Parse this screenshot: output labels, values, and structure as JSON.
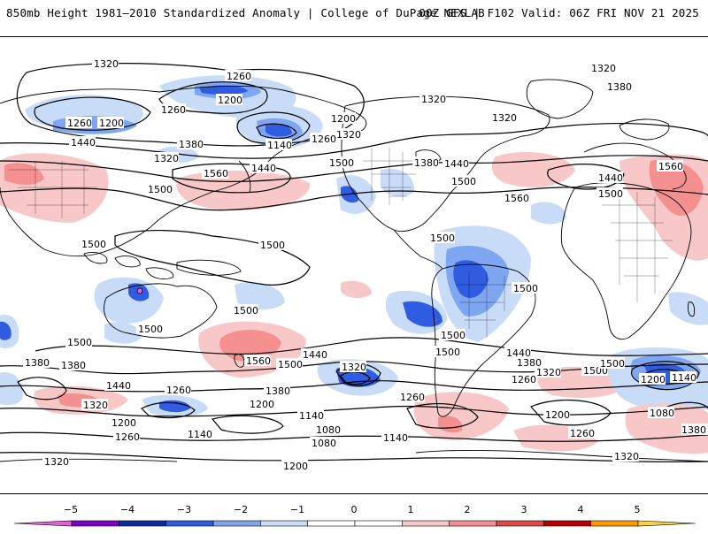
{
  "header": {
    "title_left": "850mb Height 1981–2010 Standardized Anomaly | College of DuPage NEXLAB",
    "title_right": "00Z GFS | F102 Valid: 06Z FRI NOV 21 2025"
  },
  "contour_labels": {
    "l1": "1320",
    "l2": "1260",
    "l3": "1200",
    "l4": "1260",
    "l5": "1200",
    "l6": "1260",
    "l7": "1140",
    "l8": "1200",
    "l9": "1320",
    "l10": "1260",
    "l11": "1320",
    "l12": "1380",
    "l13": "1320",
    "l14": "1320",
    "l15": "1440",
    "l16": "1320",
    "l17": "1380",
    "l18": "1440",
    "l19": "1500",
    "l20": "1560",
    "l21": "1500",
    "l22": "1380",
    "l23": "1440",
    "l24": "1500",
    "l25": "1560",
    "l26": "1440",
    "l27": "1500",
    "l28": "1560",
    "l29": "1500",
    "l30": "1500",
    "l31": "1500",
    "l32": "1500",
    "l33": "1500",
    "l34": "1500",
    "l35": "1500",
    "l36": "1500",
    "l37": "1500",
    "l38": "1500",
    "l39": "1380",
    "l40": "1440",
    "l41": "1320",
    "l42": "1260",
    "l43": "1200",
    "l44": "1260",
    "l45": "1140",
    "l46": "1200",
    "l47": "1560",
    "l48": "1500",
    "l49": "1440",
    "l50": "1320",
    "l51": "1380",
    "l52": "1260",
    "l53": "1140",
    "l54": "1080",
    "l55": "1080",
    "l56": "1140",
    "l57": "1200",
    "l58": "1440",
    "l59": "1380",
    "l60": "1320",
    "l61": "1260",
    "l62": "1200",
    "l63": "1500",
    "l64": "1200",
    "l65": "1140",
    "l66": "1080",
    "l67": "1260",
    "l68": "1380",
    "l69": "1320",
    "l70": "1380",
    "l71": "1320"
  },
  "colorbar": {
    "ticks": [
      "−5",
      "−4",
      "−3",
      "−2",
      "−1",
      "0",
      "1",
      "2",
      "3",
      "4",
      "5"
    ],
    "colors": [
      "#e060e0",
      "#7b00c8",
      "#0b2a9f",
      "#2f5ce0",
      "#7fa6f0",
      "#c8dcf8",
      "#ffffff",
      "#ffffff",
      "#f8c8c8",
      "#f49090",
      "#e04848",
      "#b80000",
      "#ff9900",
      "#ffd040"
    ]
  }
}
